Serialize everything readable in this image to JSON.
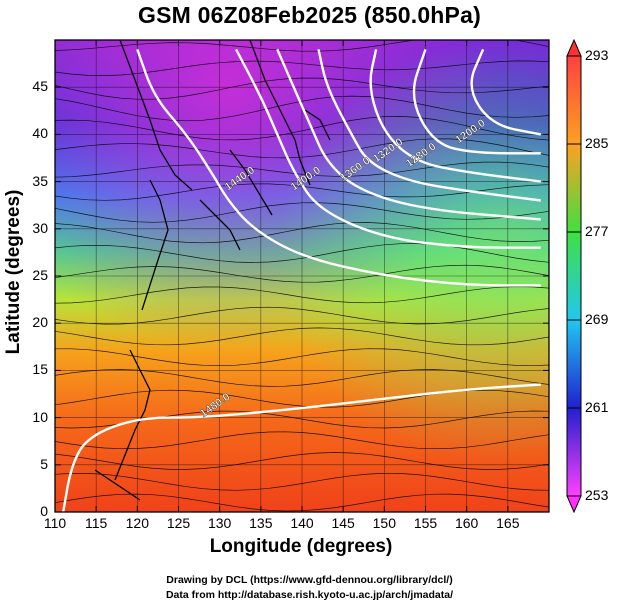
{
  "title": "GSM 06Z08Feb2025 (850.0hPa)",
  "axes": {
    "xlabel": "Longitude (degrees)",
    "ylabel": "Latitude  (degrees)",
    "xticks": [
      "110",
      "115",
      "120",
      "125",
      "130",
      "135",
      "140",
      "145",
      "150",
      "155",
      "160",
      "165"
    ],
    "yticks": [
      "0",
      "5",
      "10",
      "15",
      "20",
      "25",
      "30",
      "35",
      "40",
      "45"
    ]
  },
  "colorbar": {
    "labels": [
      "293",
      "285",
      "277",
      "269",
      "261",
      "253"
    ],
    "min": 253,
    "max": 293
  },
  "contour_labels": [
    "1480.0",
    "1440.0",
    "1400.0",
    "1360.0",
    "1320.0",
    "1280.0",
    "1240.0",
    "1200.0"
  ],
  "credits": {
    "line1": "Drawing by DCL (https://www.gfd-dennou.org/library/dcl/)",
    "line2": "Data from http://database.rish.kyoto-u.ac.jp/arch/jmadata/"
  },
  "chart_data": {
    "type": "heatmap",
    "xlim": [
      110,
      170
    ],
    "ylim": [
      0,
      50
    ],
    "color_range": [
      253,
      293
    ],
    "height_contours": [
      {
        "value": 1480.0,
        "points": [
          [
            111,
            0
          ],
          [
            112,
            5
          ],
          [
            114,
            8
          ],
          [
            120,
            10
          ],
          [
            128,
            10
          ],
          [
            140,
            11
          ],
          [
            150,
            12
          ],
          [
            160,
            13
          ],
          [
            169,
            13.5
          ]
        ]
      },
      {
        "value": 1440.0,
        "points": [
          [
            120,
            49
          ],
          [
            122,
            44
          ],
          [
            126,
            40
          ],
          [
            129,
            36
          ],
          [
            131,
            33
          ],
          [
            134,
            30
          ],
          [
            140,
            27
          ],
          [
            150,
            25
          ],
          [
            160,
            24
          ],
          [
            169,
            24
          ]
        ]
      },
      {
        "value": 1400.0,
        "points": [
          [
            132,
            49
          ],
          [
            135,
            44
          ],
          [
            137,
            40
          ],
          [
            139,
            36
          ],
          [
            142,
            32
          ],
          [
            150,
            29
          ],
          [
            160,
            28
          ],
          [
            169,
            28
          ]
        ]
      },
      {
        "value": 1360.0,
        "points": [
          [
            137,
            49
          ],
          [
            139,
            45
          ],
          [
            141,
            41
          ],
          [
            143,
            37
          ],
          [
            147,
            34
          ],
          [
            155,
            32
          ],
          [
            169,
            31
          ]
        ]
      },
      {
        "value": 1320.0,
        "points": [
          [
            142,
            49
          ],
          [
            143,
            45
          ],
          [
            146,
            40
          ],
          [
            148,
            37
          ],
          [
            153,
            35
          ],
          [
            160,
            34
          ],
          [
            169,
            33
          ]
        ]
      },
      {
        "value": 1280.0,
        "points": [
          [
            149,
            49
          ],
          [
            148,
            45
          ],
          [
            150,
            40
          ],
          [
            154,
            37
          ],
          [
            160,
            36
          ],
          [
            169,
            35
          ]
        ]
      },
      {
        "value": 1240.0,
        "points": [
          [
            155,
            49
          ],
          [
            153,
            44
          ],
          [
            156,
            39
          ],
          [
            161,
            38
          ],
          [
            169,
            38
          ]
        ]
      },
      {
        "value": 1200.0,
        "points": [
          [
            162,
            49
          ],
          [
            160,
            45
          ],
          [
            163,
            41
          ],
          [
            169,
            40
          ]
        ]
      }
    ],
    "label_positions": [
      {
        "text": "1480.0",
        "x": 128,
        "y": 10
      },
      {
        "text": "1440.0",
        "x": 131,
        "y": 34
      },
      {
        "text": "1400.0",
        "x": 139,
        "y": 34
      },
      {
        "text": "1360.0",
        "x": 145,
        "y": 35
      },
      {
        "text": "1320.0",
        "x": 149,
        "y": 37
      },
      {
        "text": "1280.0",
        "x": 153,
        "y": 36.5
      },
      {
        "text": "1200.0",
        "x": 159,
        "y": 39
      }
    ]
  }
}
